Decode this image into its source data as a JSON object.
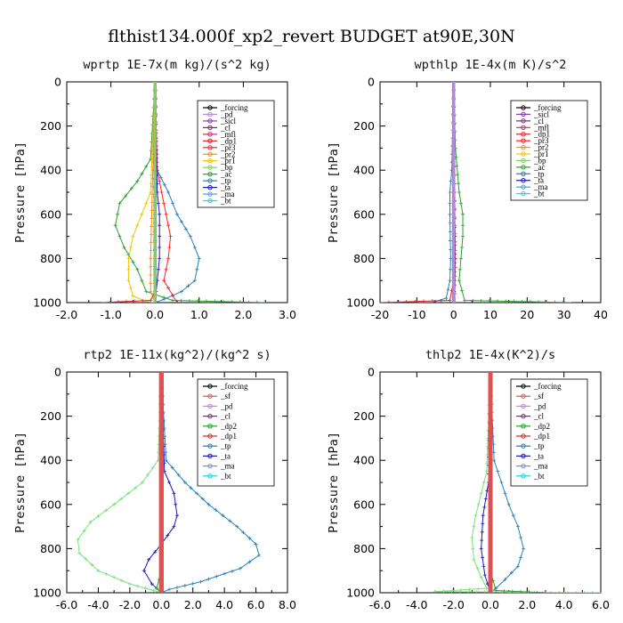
{
  "title": "flthist134.000f_xp2_revert  BUDGET at90E,30N",
  "chart_data": [
    {
      "type": "line",
      "title": "wprtp  1E-7x(m kg)/(s^2 kg)",
      "ylabel": "Pressure [hPa]",
      "xlim": [
        -2.0,
        3.0
      ],
      "ylim": [
        1000,
        0
      ],
      "xticks": [
        "-2.0",
        "-1.0",
        "0.0",
        "1.0",
        "2.0",
        "3.0"
      ],
      "yticks": [
        "0",
        "200",
        "400",
        "600",
        "800",
        "1000"
      ],
      "legend": [
        "_forcing",
        "_pd",
        "_sicl",
        "_cl",
        "_mfl",
        "_dp1",
        "_pr3",
        "_pr2",
        "_pr1",
        "_bp",
        "_ac",
        "_tp",
        "_ta",
        "_ma",
        "_bt"
      ],
      "legend_position": "top-right",
      "series": [
        {
          "name": "_forcing",
          "color": "#000000",
          "x": [
            0,
            0,
            0,
            0,
            0,
            0,
            0
          ],
          "y": [
            0,
            200,
            400,
            600,
            800,
            900,
            1000
          ]
        },
        {
          "name": "_ac",
          "color": "#2aa02a",
          "x": [
            0,
            -0.1,
            -0.4,
            -0.8,
            -0.9,
            -0.7,
            -0.4,
            -0.2,
            0.4,
            2.5
          ],
          "y": [
            0,
            350,
            450,
            550,
            650,
            750,
            850,
            950,
            990,
            1000
          ]
        },
        {
          "name": "_tp",
          "color": "#2a7fb8",
          "x": [
            0,
            0.05,
            0.3,
            0.5,
            0.8,
            1.0,
            0.9,
            0.6,
            0.2,
            0
          ],
          "y": [
            0,
            400,
            500,
            600,
            700,
            800,
            900,
            950,
            985,
            1000
          ]
        },
        {
          "name": "_pr1",
          "color": "#f2c200",
          "x": [
            0,
            -0.1,
            -0.3,
            -0.5,
            -0.6,
            -0.6,
            -0.5,
            -0.2,
            0
          ],
          "y": [
            0,
            500,
            600,
            700,
            800,
            900,
            970,
            995,
            1000
          ]
        },
        {
          "name": "_pr2",
          "color": "#ff8c00",
          "x": [
            0,
            -0.1,
            -0.1,
            0
          ],
          "y": [
            0,
            800,
            950,
            1000
          ]
        },
        {
          "name": "_pr3",
          "color": "#ff2020",
          "x": [
            0,
            0.05,
            0.15,
            0.25,
            0.35,
            0.3,
            0.2,
            0.5
          ],
          "y": [
            0,
            400,
            500,
            600,
            700,
            800,
            900,
            1000
          ]
        },
        {
          "name": "_dp1",
          "color": "#d62728",
          "x": [
            0,
            0,
            0,
            -0.1,
            -1.2
          ],
          "y": [
            0,
            800,
            950,
            990,
            1000
          ]
        },
        {
          "name": "_ta",
          "color": "#1a1ab8",
          "x": [
            0,
            0.05,
            0.1,
            0.1,
            0.1,
            0.05,
            0
          ],
          "y": [
            0,
            500,
            600,
            700,
            800,
            900,
            1000
          ]
        },
        {
          "name": "_ma",
          "color": "#5a9bd5",
          "x": [
            0,
            0,
            0
          ],
          "y": [
            0,
            900,
            1000
          ]
        },
        {
          "name": "_bp",
          "color": "#88cc66",
          "x": [
            0,
            0,
            0
          ],
          "y": [
            0,
            900,
            1000
          ]
        }
      ]
    },
    {
      "type": "line",
      "title": "wpthlp  1E-4x(m K)/s^2",
      "ylabel": "Pressure [hPa]",
      "xlim": [
        -20,
        40
      ],
      "ylim": [
        1000,
        0
      ],
      "xticks": [
        "-20",
        "-10",
        "0",
        "10",
        "20",
        "30",
        "40"
      ],
      "yticks": [
        "0",
        "200",
        "400",
        "600",
        "800",
        "1000"
      ],
      "legend": [
        "_forcing",
        "_sicl",
        "_cl",
        "_mfl",
        "_dp1",
        "_pr3",
        "_pr2",
        "_pr1",
        "_bp",
        "_ac",
        "_tp",
        "_ta",
        "_ma",
        "_bt"
      ],
      "legend_position": "top-right",
      "series": [
        {
          "name": "_forcing",
          "color": "#000000",
          "x": [
            0,
            0,
            0
          ],
          "y": [
            0,
            500,
            1000
          ]
        },
        {
          "name": "_ac",
          "color": "#2aa02a",
          "x": [
            0,
            0.5,
            1.5,
            2.5,
            2.5,
            2,
            1.5,
            3,
            32
          ],
          "y": [
            0,
            300,
            500,
            600,
            700,
            800,
            900,
            990,
            1000
          ]
        },
        {
          "name": "_tp",
          "color": "#2a7fb8",
          "x": [
            0,
            -0.5,
            -1,
            -1,
            -0.8,
            -1,
            -2,
            -6
          ],
          "y": [
            0,
            400,
            500,
            600,
            800,
            900,
            980,
            1000
          ]
        },
        {
          "name": "_dp1",
          "color": "#d62728",
          "x": [
            0,
            0,
            -1,
            -20
          ],
          "y": [
            0,
            900,
            990,
            1000
          ]
        },
        {
          "name": "_pr1",
          "color": "#f2c200",
          "x": [
            0,
            0,
            0.5
          ],
          "y": [
            0,
            900,
            1000
          ]
        },
        {
          "name": "_pr3",
          "color": "#ff2020",
          "x": [
            0,
            0.2,
            0.5,
            0.3
          ],
          "y": [
            0,
            500,
            800,
            1000
          ]
        },
        {
          "name": "_ta",
          "color": "#1a1ab8",
          "x": [
            0,
            0.2,
            0.3,
            0.2,
            0
          ],
          "y": [
            0,
            500,
            700,
            900,
            1000
          ]
        },
        {
          "name": "_sicl",
          "color": "#b38bd6",
          "x": [
            0,
            0,
            0
          ],
          "y": [
            0,
            500,
            1000
          ]
        }
      ]
    },
    {
      "type": "line",
      "title": "rtp2  1E-11x(kg^2)/(kg^2 s)",
      "ylabel": "Pressure [hPa]",
      "xlim": [
        -6.0,
        8.0
      ],
      "ylim": [
        1000,
        0
      ],
      "xticks": [
        "-6.0",
        "-4.0",
        "-2.0",
        "0.0",
        "2.0",
        "4.0",
        "6.0",
        "8.0"
      ],
      "yticks": [
        "0",
        "200",
        "400",
        "600",
        "800",
        "1000"
      ],
      "legend": [
        "_forcing",
        "_sf",
        "_pd",
        "_cl",
        "_dp2",
        "_dp1",
        "_tp",
        "_ta",
        "_ma",
        "_bt"
      ],
      "legend_position": "top-right",
      "series": [
        {
          "name": "_dp1",
          "color": "#7ee07e",
          "x": [
            0,
            -0.2,
            -1.2,
            -3,
            -4.5,
            -5.3,
            -5.2,
            -4,
            -2,
            -0.5,
            0
          ],
          "y": [
            0,
            400,
            500,
            600,
            680,
            760,
            820,
            900,
            960,
            990,
            1000
          ]
        },
        {
          "name": "_tp",
          "color": "#2a7fb8",
          "x": [
            0,
            0.3,
            1.5,
            3,
            4.8,
            6,
            6.2,
            5,
            2.5,
            0.5,
            0
          ],
          "y": [
            0,
            400,
            500,
            600,
            700,
            780,
            830,
            890,
            950,
            985,
            1000
          ]
        },
        {
          "name": "_ta",
          "color": "#1a1ab8",
          "x": [
            0,
            0.2,
            0.8,
            1,
            0.8,
            0,
            -0.8,
            -1.1,
            -0.6,
            0
          ],
          "y": [
            0,
            450,
            550,
            650,
            700,
            780,
            850,
            900,
            960,
            1000
          ]
        },
        {
          "name": "_dp2",
          "color": "#2aa02a",
          "x": [
            0,
            0,
            -0.3,
            0
          ],
          "y": [
            0,
            900,
            980,
            1000
          ]
        },
        {
          "name": "_forcing",
          "color": "#ff0000",
          "x": [
            0,
            0,
            0
          ],
          "y": [
            0,
            500,
            1000
          ]
        },
        {
          "name": "_sf",
          "color": "#e05050",
          "x": [
            0,
            0,
            0
          ],
          "y": [
            0,
            500,
            1000
          ]
        }
      ]
    },
    {
      "type": "line",
      "title": "thlp2  1E-4x(K^2)/s",
      "ylabel": "Pressure [hPa]",
      "xlim": [
        -6.0,
        6.0
      ],
      "ylim": [
        1000,
        0
      ],
      "xticks": [
        "-6.0",
        "-4.0",
        "-2.0",
        "0.0",
        "2.0",
        "4.0",
        "6.0"
      ],
      "yticks": [
        "0",
        "200",
        "400",
        "600",
        "800",
        "1000"
      ],
      "legend": [
        "_forcing",
        "_sf",
        "_pd",
        "_cl",
        "_dp2",
        "_dp1",
        "_tp",
        "_ta",
        "_ma",
        "_bt"
      ],
      "legend_position": "top-right",
      "series": [
        {
          "name": "_tp",
          "color": "#2a7fb8",
          "x": [
            0,
            0.2,
            0.6,
            1,
            1.5,
            1.8,
            1.5,
            0.8,
            0.3,
            0
          ],
          "y": [
            0,
            400,
            500,
            600,
            700,
            800,
            880,
            940,
            980,
            1000
          ]
        },
        {
          "name": "_dp1",
          "color": "#7ee07e",
          "x": [
            0,
            -0.2,
            -0.5,
            -0.8,
            -1,
            -0.9,
            -0.5,
            -0.2,
            -3,
            6
          ],
          "y": [
            0,
            450,
            550,
            650,
            750,
            850,
            930,
            980,
            995,
            1000
          ]
        },
        {
          "name": "_ta",
          "color": "#1a1ab8",
          "x": [
            0,
            -0.1,
            -0.4,
            -0.5,
            -0.3,
            0
          ],
          "y": [
            0,
            500,
            650,
            800,
            920,
            1000
          ]
        },
        {
          "name": "_dp2",
          "color": "#2aa02a",
          "x": [
            0,
            0,
            0.3,
            3
          ],
          "y": [
            0,
            900,
            990,
            1000
          ]
        },
        {
          "name": "_forcing",
          "color": "#ff0000",
          "x": [
            0,
            0,
            0
          ],
          "y": [
            0,
            500,
            1000
          ]
        },
        {
          "name": "_sf",
          "color": "#e05050",
          "x": [
            0,
            0,
            0
          ],
          "y": [
            0,
            500,
            1000
          ]
        }
      ]
    }
  ],
  "legend_colors": {
    "_forcing": "#000000",
    "_pd": "#b38bd6",
    "_sicl": "#8040c0",
    "_cl": "#8b2080",
    "_mfl": "#c0306a",
    "_dp1": "#d62728",
    "_pr3": "#ff2020",
    "_pr2": "#ff8c00",
    "_pr1": "#f2c200",
    "_bp": "#88cc66",
    "_ac": "#2aa02a",
    "_tp": "#2a7fb8",
    "_ta": "#1a1ab8",
    "_ma": "#5a9bd5",
    "_bt": "#20d0f0",
    "_sf": "#e05050",
    "_dp2": "#2aa02a"
  }
}
